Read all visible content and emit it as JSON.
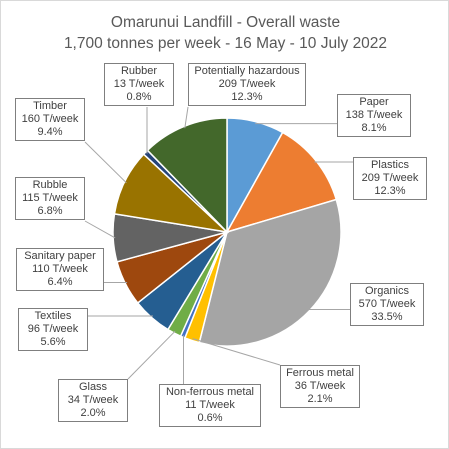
{
  "chart_data": {
    "type": "pie",
    "title": "Omarunui Landfill - Overall waste",
    "subtitle": "1,700 tonnes per week - 16 May - 10 July 2022",
    "slices": [
      {
        "name": "Paper",
        "value": 138,
        "value_label": "138 T/week",
        "percent_label": "8.1%",
        "color": "#5b9bd5"
      },
      {
        "name": "Plastics",
        "value": 209,
        "value_label": "209 T/week",
        "percent_label": "12.3%",
        "color": "#ed7d31"
      },
      {
        "name": "Organics",
        "value": 570,
        "value_label": "570 T/week",
        "percent_label": "33.5%",
        "color": "#a5a5a5"
      },
      {
        "name": "Ferrous metal",
        "value": 36,
        "value_label": "36 T/week",
        "percent_label": "2.1%",
        "color": "#ffc000"
      },
      {
        "name": "Non-ferrous metal",
        "value": 11,
        "value_label": "11 T/week",
        "percent_label": "0.6%",
        "color": "#4472c4"
      },
      {
        "name": "Glass",
        "value": 34,
        "value_label": "34 T/week",
        "percent_label": "2.0%",
        "color": "#70ad47"
      },
      {
        "name": "Textiles",
        "value": 96,
        "value_label": "96 T/week",
        "percent_label": "5.6%",
        "color": "#255e91"
      },
      {
        "name": "Sanitary paper",
        "value": 110,
        "value_label": "110 T/week",
        "percent_label": "6.4%",
        "color": "#9e480e"
      },
      {
        "name": "Rubble",
        "value": 115,
        "value_label": "115 T/week",
        "percent_label": "6.8%",
        "color": "#636363"
      },
      {
        "name": "Timber",
        "value": 160,
        "value_label": "160 T/week",
        "percent_label": "9.4%",
        "color": "#997300"
      },
      {
        "name": "Rubber",
        "value": 13,
        "value_label": "13 T/week",
        "percent_label": "0.8%",
        "color": "#264478"
      },
      {
        "name": "Potentially hazardous",
        "value": 209,
        "value_label": "209 T/week",
        "percent_label": "12.3%",
        "color": "#43682b"
      }
    ],
    "start_angle": "12 o'clock",
    "direction": "clockwise",
    "legend": "none",
    "data_labels": "callouts with leader lines"
  }
}
